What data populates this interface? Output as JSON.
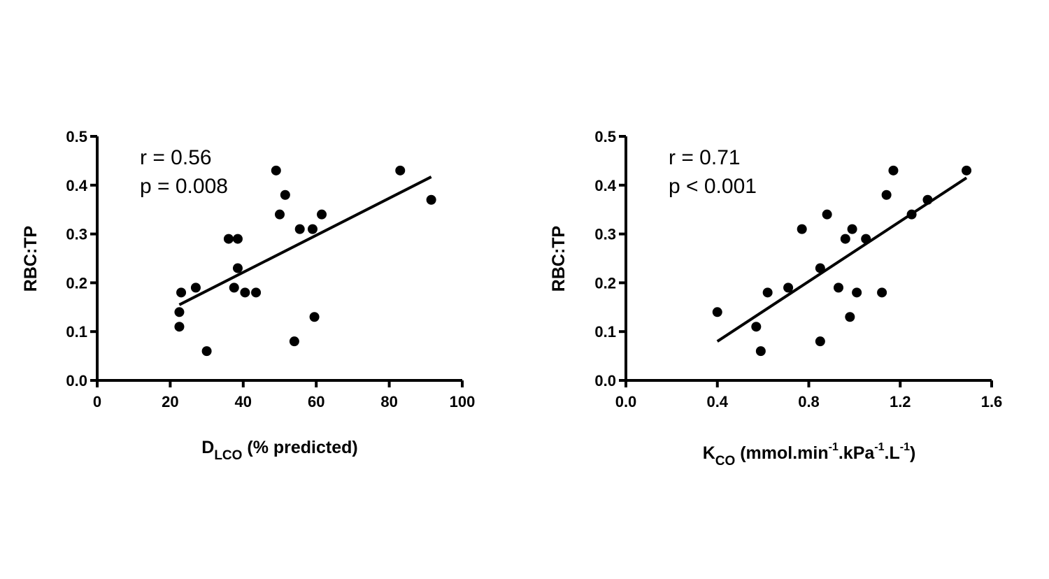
{
  "chart_data": [
    {
      "type": "scatter",
      "ylabel": "RBC:TP",
      "xlabel": {
        "main": "D",
        "sub": "LCO",
        "rest": " (% predicted)"
      },
      "xlim": [
        0,
        100
      ],
      "ylim": [
        0,
        0.5
      ],
      "xticks": [
        "0",
        "20",
        "40",
        "60",
        "80",
        "100"
      ],
      "yticks": [
        "0.0",
        "0.1",
        "0.2",
        "0.3",
        "0.4",
        "0.5"
      ],
      "annotations": [
        "r = 0.56",
        "p = 0.008"
      ],
      "points": [
        {
          "x": 22.5,
          "y": 0.14
        },
        {
          "x": 22.5,
          "y": 0.11
        },
        {
          "x": 23.0,
          "y": 0.18
        },
        {
          "x": 27.0,
          "y": 0.19
        },
        {
          "x": 30.0,
          "y": 0.06
        },
        {
          "x": 36.0,
          "y": 0.29
        },
        {
          "x": 37.5,
          "y": 0.19
        },
        {
          "x": 38.5,
          "y": 0.29
        },
        {
          "x": 38.5,
          "y": 0.23
        },
        {
          "x": 40.5,
          "y": 0.18
        },
        {
          "x": 43.5,
          "y": 0.18
        },
        {
          "x": 49.0,
          "y": 0.43
        },
        {
          "x": 50.0,
          "y": 0.34
        },
        {
          "x": 51.5,
          "y": 0.38
        },
        {
          "x": 54.0,
          "y": 0.08
        },
        {
          "x": 55.5,
          "y": 0.31
        },
        {
          "x": 59.0,
          "y": 0.31
        },
        {
          "x": 59.5,
          "y": 0.13
        },
        {
          "x": 61.5,
          "y": 0.34
        },
        {
          "x": 83.0,
          "y": 0.43
        },
        {
          "x": 91.5,
          "y": 0.37
        }
      ],
      "fit_line": {
        "x1": 22.5,
        "y1": 0.155,
        "x2": 91.5,
        "y2": 0.417
      }
    },
    {
      "type": "scatter",
      "ylabel": "RBC:TP",
      "xlabel": {
        "main": "K",
        "sub": "CO",
        "rest": " (mmol.min",
        "parts": [
          [
            "-1",
            ".kPa"
          ],
          [
            "-1",
            ".L"
          ],
          [
            "-1",
            ")"
          ]
        ]
      },
      "xlim": [
        0,
        1.6
      ],
      "ylim": [
        0,
        0.5
      ],
      "xticks": [
        "0.0",
        "0.4",
        "0.8",
        "1.2",
        "1.6"
      ],
      "yticks": [
        "0.0",
        "0.1",
        "0.2",
        "0.3",
        "0.4",
        "0.5"
      ],
      "annotations": [
        "r = 0.71",
        "p < 0.001"
      ],
      "points": [
        {
          "x": 0.4,
          "y": 0.14
        },
        {
          "x": 0.57,
          "y": 0.11
        },
        {
          "x": 0.59,
          "y": 0.06
        },
        {
          "x": 0.62,
          "y": 0.18
        },
        {
          "x": 0.71,
          "y": 0.19
        },
        {
          "x": 0.77,
          "y": 0.31
        },
        {
          "x": 0.85,
          "y": 0.23
        },
        {
          "x": 0.85,
          "y": 0.08
        },
        {
          "x": 0.88,
          "y": 0.34
        },
        {
          "x": 0.93,
          "y": 0.19
        },
        {
          "x": 0.96,
          "y": 0.29
        },
        {
          "x": 0.98,
          "y": 0.13
        },
        {
          "x": 0.99,
          "y": 0.31
        },
        {
          "x": 1.01,
          "y": 0.18
        },
        {
          "x": 1.05,
          "y": 0.29
        },
        {
          "x": 1.12,
          "y": 0.18
        },
        {
          "x": 1.14,
          "y": 0.38
        },
        {
          "x": 1.17,
          "y": 0.43
        },
        {
          "x": 1.25,
          "y": 0.34
        },
        {
          "x": 1.32,
          "y": 0.37
        },
        {
          "x": 1.49,
          "y": 0.43
        }
      ],
      "fit_line": {
        "x1": 0.4,
        "y1": 0.08,
        "x2": 1.49,
        "y2": 0.415
      }
    }
  ]
}
